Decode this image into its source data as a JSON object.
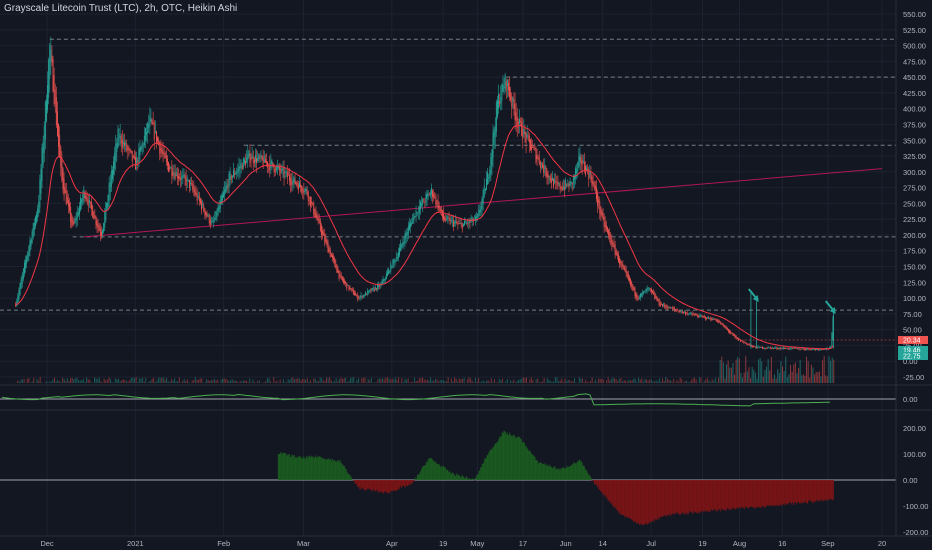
{
  "header": {
    "title": "Grayscale Litecoin Trust (LTC), 2h, OTC, Heikin Ashi"
  },
  "colors": {
    "background": "#131722",
    "grid": "#1e2230",
    "axis_text": "#b2b5be",
    "up": "#26a69a",
    "down": "#ef5350",
    "ma": "#f23645",
    "trend": "#c2185b",
    "level": "#8b9a9a",
    "osc_line": "#4caf50",
    "hist_up": "#1b5e20",
    "hist_down": "#7f1416"
  },
  "chart_data": [
    {
      "type": "candlestick",
      "title": "Grayscale Litecoin Trust (LTC), 2h, OTC, Heikin Ashi",
      "x_tick_labels": [
        "Dec",
        "2021",
        "Feb",
        "Mar",
        "Apr",
        "19",
        "May",
        "17",
        "Jun",
        "14",
        "Jul",
        "19",
        "Aug",
        "16",
        "Sep",
        "20"
      ],
      "y_tick_labels": [
        "550.00",
        "525.00",
        "500.00",
        "475.00",
        "450.00",
        "425.00",
        "400.00",
        "375.00",
        "350.00",
        "325.00",
        "300.00",
        "275.00",
        "250.00",
        "225.00",
        "200.00",
        "175.00",
        "150.00",
        "125.00",
        "100.00",
        "75.00",
        "50.00",
        "25.00",
        "0.00",
        "-25.00"
      ],
      "ylim": [
        -25,
        550
      ],
      "price_path": [
        [
          "Nov 20",
          90
        ],
        [
          "Nov 28",
          250
        ],
        [
          "Dec 2",
          500
        ],
        [
          "Dec 6",
          290
        ],
        [
          "Dec 10",
          210
        ],
        [
          "Dec 14",
          270
        ],
        [
          "Dec 20",
          200
        ],
        [
          "Dec 26",
          360
        ],
        [
          "Jan 1",
          310
        ],
        [
          "Jan 6",
          380
        ],
        [
          "Jan 12",
          310
        ],
        [
          "Jan 20",
          280
        ],
        [
          "Jan 28",
          215
        ],
        [
          "Feb 3",
          290
        ],
        [
          "Feb 10",
          325
        ],
        [
          "Feb 18",
          310
        ],
        [
          "Feb 24",
          290
        ],
        [
          "Mar 2",
          270
        ],
        [
          "Mar 8",
          195
        ],
        [
          "Mar 14",
          130
        ],
        [
          "Mar 20",
          100
        ],
        [
          "Mar 28",
          120
        ],
        [
          "Apr 3",
          170
        ],
        [
          "Apr 9",
          235
        ],
        [
          "Apr 15",
          270
        ],
        [
          "Apr 19",
          225
        ],
        [
          "Apr 25",
          215
        ],
        [
          "May 1",
          225
        ],
        [
          "May 5",
          300
        ],
        [
          "May 8",
          410
        ],
        [
          "May 11",
          445
        ],
        [
          "May 15",
          380
        ],
        [
          "May 19",
          345
        ],
        [
          "May 25",
          300
        ],
        [
          "May 29",
          275
        ],
        [
          "Jun 3",
          280
        ],
        [
          "Jun 6",
          320
        ],
        [
          "Jun 10",
          290
        ],
        [
          "Jun 14",
          220
        ],
        [
          "Jun 20",
          155
        ],
        [
          "Jun 26",
          100
        ],
        [
          "Jun 30",
          115
        ],
        [
          "Jul 4",
          90
        ],
        [
          "Jul 10",
          80
        ],
        [
          "Jul 17",
          72
        ],
        [
          "Jul 24",
          65
        ],
        [
          "Jul 31",
          35
        ],
        [
          "Aug 6",
          22
        ],
        [
          "Aug 20",
          20
        ],
        [
          "Aug 28",
          19
        ],
        [
          "Sep 2",
          21
        ],
        [
          "Sep 3",
          80
        ]
      ],
      "moving_average": "red line tracking price",
      "horizontal_levels": [
        510,
        450,
        342,
        197,
        81
      ],
      "trendline": {
        "from": [
          "Dec 14",
          197
        ],
        "to": [
          "Sep 20",
          305
        ]
      },
      "last_price_labels": [
        "20.34",
        "19.46",
        "22.75"
      ],
      "annotations": [
        "arrow near Aug 5 spike",
        "arrow at Sep 3 spike"
      ]
    },
    {
      "type": "line",
      "title": "",
      "y_tick_labels": [
        "0.00"
      ],
      "ylim": [
        -0.05,
        0.05
      ]
    },
    {
      "type": "area",
      "title": "",
      "y_tick_labels": [
        "200.00",
        "100.00",
        "0.00",
        "-100.00",
        "-200.00"
      ],
      "ylim": [
        -200,
        200
      ],
      "series": [
        {
          "values": [
            [
              "Feb 20",
              105
            ],
            [
              "Feb 28",
              85
            ],
            [
              "Mar 6",
              90
            ],
            [
              "Mar 14",
              70
            ],
            [
              "Mar 20",
              -30
            ],
            [
              "Mar 30",
              -50
            ],
            [
              "Apr 8",
              -15
            ],
            [
              "Apr 14",
              85
            ],
            [
              "Apr 22",
              25
            ],
            [
              "Apr 30",
              0
            ],
            [
              "May 4",
              90
            ],
            [
              "May 10",
              185
            ],
            [
              "May 16",
              160
            ],
            [
              "May 22",
              70
            ],
            [
              "May 30",
              40
            ],
            [
              "Jun 6",
              75
            ],
            [
              "Jun 10",
              0
            ],
            [
              "Jun 20",
              -130
            ],
            [
              "Jun 28",
              -175
            ],
            [
              "Jul 6",
              -135
            ],
            [
              "Jul 20",
              -120
            ],
            [
              "Aug 5",
              -105
            ],
            [
              "Aug 20",
              -90
            ],
            [
              "Sep 3",
              -75
            ]
          ]
        }
      ]
    }
  ]
}
